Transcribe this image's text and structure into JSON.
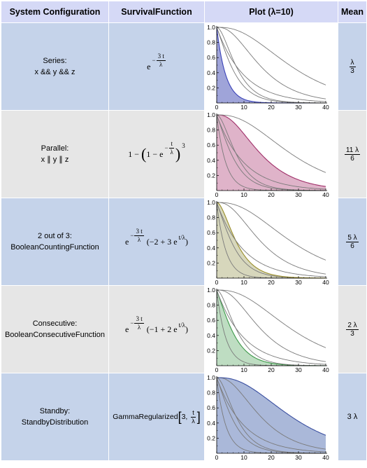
{
  "headers": {
    "config": "System Configuration",
    "survival": "SurvivalFunction",
    "plot": "Plot (λ=10)",
    "mean": "Mean"
  },
  "rows": [
    {
      "config_line1": "Series:",
      "config_line2": "x && y && z",
      "survival": {
        "base": "e",
        "minus": "−",
        "num": "3 t",
        "den": "λ"
      },
      "mean": {
        "num": "λ",
        "den": "3"
      },
      "highlight_index": 0,
      "highlight_color": "#3b43b8",
      "fill_color": "#7f85cc"
    },
    {
      "config_line1": "Parallel:",
      "config_line2": "x ∥ y ∥ z",
      "survival": {
        "one": "1",
        "minus": "−",
        "inner_one": "1",
        "inner_minus": "−",
        "base": "e",
        "num": "t",
        "den": "λ",
        "power": "3"
      },
      "mean": {
        "num": "11 λ",
        "den": "6"
      },
      "highlight_index": 4,
      "highlight_color": "#a0306a",
      "fill_color": "#d49ab7"
    },
    {
      "config_line1": "2 out of 3:",
      "config_line2": "BooleanCountingFunction",
      "survival": {
        "base": "e",
        "minus": "−",
        "num": "3 t",
        "den": "λ",
        "rest": "(−2 + 3 e",
        "exp": "t/λ",
        "close": ")"
      },
      "mean": {
        "num": "5 λ",
        "den": "6"
      },
      "highlight_index": 2,
      "highlight_color": "#9a8e2a",
      "fill_color": "#c9c9a6"
    },
    {
      "config_line1": "Consecutive:",
      "config_line2": "BooleanConsecutiveFunction",
      "survival": {
        "base": "e",
        "minus": "−",
        "num": "3 t",
        "den": "λ",
        "rest": "(−1 + 2 e",
        "exp": "t/λ",
        "close": ")"
      },
      "mean": {
        "num": "2 λ",
        "den": "3"
      },
      "highlight_index": 1,
      "highlight_color": "#3d9a4a",
      "fill_color": "#a8d2ae"
    },
    {
      "config_line1": "Standby:",
      "config_line2": "StandbyDistribution",
      "survival": {
        "func": "GammaRegularized",
        "arg1": "3,",
        "num": "t",
        "den": "λ"
      },
      "mean": {
        "text": "3 λ"
      },
      "highlight_index": 5,
      "highlight_color": "#3a4fa0",
      "fill_color": "#8ea0cc"
    }
  ],
  "chart_data": {
    "type": "line",
    "lambda": 10,
    "xlim": [
      0,
      40
    ],
    "ylim": [
      0,
      1
    ],
    "xticks": [
      "0",
      "10",
      "20",
      "30",
      "40"
    ],
    "yticks": [
      "0.2",
      "0.4",
      "0.6",
      "0.8",
      "1.0"
    ],
    "curves": [
      "series",
      "consecutive",
      "2-out-of-3",
      "single",
      "parallel",
      "standby"
    ],
    "colors": {
      "grey_curve": "#7a7a7a"
    }
  }
}
